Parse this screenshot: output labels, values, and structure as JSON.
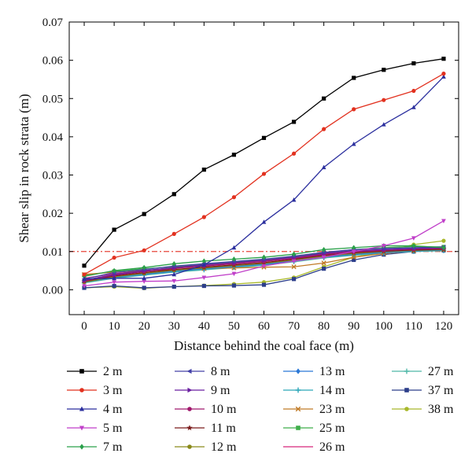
{
  "chart_data": {
    "type": "line",
    "title": "",
    "xlabel": "Distance behind the coal face (m)",
    "ylabel": "Shear slip in rock strata (m)",
    "x": [
      0,
      10,
      20,
      30,
      40,
      50,
      60,
      70,
      80,
      90,
      100,
      110,
      120
    ],
    "xlim": [
      -5,
      125
    ],
    "ylim": [
      -0.0065,
      0.07
    ],
    "xticks": [
      "0",
      "10",
      "20",
      "30",
      "40",
      "50",
      "60",
      "70",
      "80",
      "90",
      "100",
      "110",
      "120"
    ],
    "yticks": [
      "0.00",
      "0.01",
      "0.02",
      "0.03",
      "0.04",
      "0.05",
      "0.06",
      "0.07"
    ],
    "reference_line": {
      "y": 0.01,
      "color": "#e8463a",
      "style": "dash-dot"
    },
    "grid": false,
    "legend_position": "bottom",
    "series": [
      {
        "name": "2 m",
        "color": "#000000",
        "marker": "square",
        "values": [
          0.0063,
          0.0157,
          0.0198,
          0.025,
          0.0314,
          0.0353,
          0.0397,
          0.0439,
          0.05,
          0.0554,
          0.0575,
          0.0592,
          0.0604
        ]
      },
      {
        "name": "3 m",
        "color": "#e2311f",
        "marker": "circle",
        "values": [
          0.004,
          0.0084,
          0.0103,
          0.0146,
          0.019,
          0.0242,
          0.0303,
          0.0356,
          0.042,
          0.0472,
          0.0496,
          0.052,
          0.0565
        ]
      },
      {
        "name": "4 m",
        "color": "#2b2f9e",
        "marker": "triangle-up",
        "values": [
          0.0028,
          0.003,
          0.003,
          0.004,
          0.0065,
          0.011,
          0.0177,
          0.0235,
          0.032,
          0.0381,
          0.0432,
          0.0477,
          0.0557
        ]
      },
      {
        "name": "5 m",
        "color": "#c03fc9",
        "marker": "triangle-down",
        "values": [
          0.001,
          0.002,
          0.0022,
          0.0023,
          0.0032,
          0.0042,
          0.0062,
          0.0075,
          0.0085,
          0.01,
          0.0115,
          0.0135,
          0.018
        ]
      },
      {
        "name": "7 m",
        "color": "#2aa04a",
        "marker": "diamond",
        "values": [
          0.0035,
          0.005,
          0.0058,
          0.0068,
          0.0075,
          0.008,
          0.0085,
          0.0093,
          0.0105,
          0.011,
          0.0115,
          0.0115,
          0.011
        ]
      },
      {
        "name": "8 m",
        "color": "#4340a8",
        "marker": "triangle-left",
        "values": [
          0.0028,
          0.0045,
          0.0053,
          0.0062,
          0.0068,
          0.0074,
          0.008,
          0.0088,
          0.0098,
          0.0105,
          0.0108,
          0.011,
          0.0112
        ]
      },
      {
        "name": "9 m",
        "color": "#6a1fa0",
        "marker": "triangle-right",
        "values": [
          0.0025,
          0.004,
          0.005,
          0.0058,
          0.0065,
          0.0071,
          0.0077,
          0.0085,
          0.0095,
          0.0102,
          0.0105,
          0.0108,
          0.011
        ]
      },
      {
        "name": "10 m",
        "color": "#a0186c",
        "marker": "circle",
        "values": [
          0.0023,
          0.0038,
          0.0048,
          0.0056,
          0.0062,
          0.0068,
          0.0074,
          0.0082,
          0.0092,
          0.0099,
          0.0103,
          0.0106,
          0.0108
        ]
      },
      {
        "name": "11 m",
        "color": "#7a1a1a",
        "marker": "star",
        "values": [
          0.0022,
          0.0036,
          0.0045,
          0.0053,
          0.0059,
          0.0065,
          0.0071,
          0.008,
          0.009,
          0.0097,
          0.0101,
          0.0104,
          0.0106
        ]
      },
      {
        "name": "12 m",
        "color": "#8a8a1a",
        "marker": "circle",
        "values": [
          0.002,
          0.0034,
          0.0043,
          0.0051,
          0.0057,
          0.0063,
          0.0069,
          0.0078,
          0.0088,
          0.0095,
          0.01,
          0.0103,
          0.0105
        ]
      },
      {
        "name": "13 m",
        "color": "#2b78d6",
        "marker": "diamond",
        "values": [
          0.002,
          0.0033,
          0.0041,
          0.0049,
          0.0055,
          0.0061,
          0.0067,
          0.0076,
          0.0086,
          0.0093,
          0.0098,
          0.0102,
          0.0104
        ]
      },
      {
        "name": "14 m",
        "color": "#2aa6b8",
        "marker": "cross",
        "values": [
          0.0019,
          0.0032,
          0.004,
          0.0048,
          0.0054,
          0.006,
          0.0066,
          0.0075,
          0.0085,
          0.0092,
          0.0097,
          0.0101,
          0.0103
        ]
      },
      {
        "name": "23 m",
        "color": "#c07a26",
        "marker": "x",
        "values": [
          0.004,
          0.0046,
          0.005,
          0.0053,
          0.0055,
          0.0057,
          0.0059,
          0.006,
          0.007,
          0.0085,
          0.0095,
          0.0102,
          0.0105
        ]
      },
      {
        "name": "25 m",
        "color": "#3fae4a",
        "marker": "square",
        "values": [
          0.0038,
          0.0048,
          0.0055,
          0.006,
          0.0066,
          0.0072,
          0.0078,
          0.0086,
          0.0097,
          0.0105,
          0.011,
          0.0113,
          0.0112
        ]
      },
      {
        "name": "26 m",
        "color": "#d6267a",
        "marker": "none",
        "values": [
          0.003,
          0.0042,
          0.005,
          0.0057,
          0.0063,
          0.0069,
          0.0075,
          0.0083,
          0.0093,
          0.01,
          0.0104,
          0.0107,
          0.0109
        ]
      },
      {
        "name": "27 m",
        "color": "#4fb8a8",
        "marker": "cross",
        "values": [
          0.0018,
          0.003,
          0.0038,
          0.0046,
          0.0052,
          0.0058,
          0.0064,
          0.0073,
          0.0083,
          0.009,
          0.0096,
          0.01,
          0.0102
        ]
      },
      {
        "name": "37 m",
        "color": "#2c3e8a",
        "marker": "square",
        "values": [
          0.0005,
          0.001,
          0.0005,
          0.0008,
          0.001,
          0.0011,
          0.0013,
          0.0028,
          0.0055,
          0.0078,
          0.0092,
          0.01,
          0.0103
        ]
      },
      {
        "name": "38 m",
        "color": "#a8b82a",
        "marker": "circle",
        "values": [
          0.0005,
          0.0008,
          0.0004,
          0.0008,
          0.0011,
          0.0015,
          0.002,
          0.0032,
          0.006,
          0.0085,
          0.01,
          0.0118,
          0.0128
        ]
      }
    ]
  }
}
